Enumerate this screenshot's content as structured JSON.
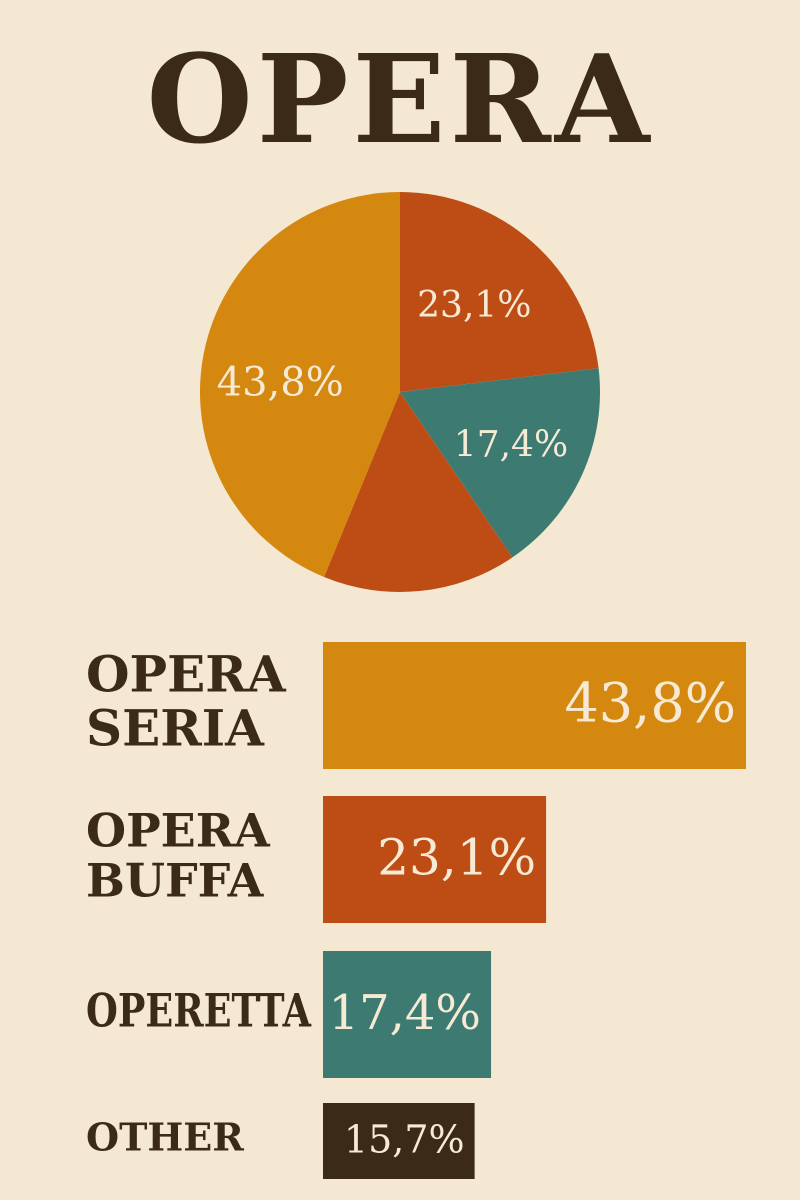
{
  "title": "OPERA",
  "colors": {
    "background": "#f4e8d2",
    "text": "#3b2a17",
    "seria": "#d4880f",
    "buffa": "#bd4d14",
    "operetta": "#3d7b72",
    "other": "#3b2a17",
    "label_light": "#f6ead4"
  },
  "chart_data": [
    {
      "type": "pie",
      "categories": [
        "OPERA SERIA",
        "OPERA BUFFA",
        "OPERETTA",
        "OTHER"
      ],
      "values": [
        43.8,
        23.1,
        17.4,
        15.7
      ],
      "labels": [
        "43,8%",
        "23,1%",
        "17,4%",
        ""
      ],
      "slice_colors": [
        "#d4880f",
        "#bd4d14",
        "#3d7b72",
        "#bd4d14"
      ]
    },
    {
      "type": "bar",
      "orientation": "horizontal",
      "categories": [
        [
          "OPERA",
          "SERIA"
        ],
        [
          "OPERA",
          "BUFFA"
        ],
        [
          "OPERETTA"
        ],
        [
          "OTHER"
        ]
      ],
      "values": [
        43.8,
        23.1,
        17.4,
        15.7
      ],
      "labels": [
        "43,8%",
        "23,1%",
        "17,4%",
        "15,7%"
      ],
      "bar_colors": [
        "#d4880f",
        "#bd4d14",
        "#3d7b72",
        "#3b2a17"
      ]
    }
  ]
}
